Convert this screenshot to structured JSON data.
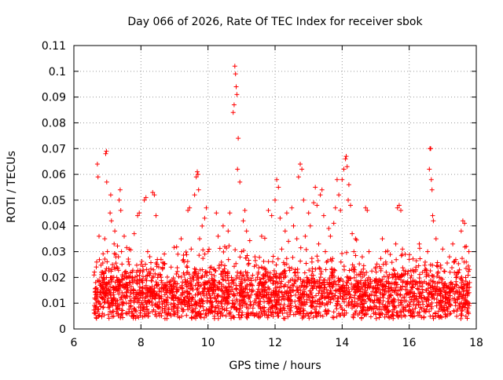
{
  "chart_data": {
    "type": "scatter",
    "title": "Day 066 of 2026, Rate Of TEC Index for receiver sbok",
    "xlabel": "GPS time / hours",
    "ylabel": "ROTI / TECUs",
    "xlim": [
      6,
      18
    ],
    "ylim": [
      0,
      0.11
    ],
    "xticks": [
      6,
      8,
      10,
      12,
      14,
      16,
      18
    ],
    "xtick_labels": [
      "6",
      "8",
      "10",
      "12",
      "14",
      "16",
      "18"
    ],
    "yticks": [
      0,
      0.01,
      0.02,
      0.03,
      0.04,
      0.05,
      0.06,
      0.07,
      0.08,
      0.09,
      0.1,
      0.11
    ],
    "ytick_labels": [
      "0",
      "0.01",
      "0.02",
      "0.03",
      "0.04",
      "0.05",
      "0.06",
      "0.07",
      "0.08",
      "0.09",
      "0.1",
      "0.11"
    ],
    "grid": true,
    "marker": "+",
    "color": "#ff0000",
    "series": [
      {
        "points": [
          [
            6.62,
            0.012
          ],
          [
            6.65,
            0.018
          ],
          [
            6.68,
            0.026
          ],
          [
            6.7,
            0.064
          ],
          [
            6.72,
            0.059
          ],
          [
            6.75,
            0.036
          ],
          [
            6.78,
            0.01
          ],
          [
            6.8,
            0.014
          ],
          [
            6.82,
            0.022
          ],
          [
            6.85,
            0.006
          ],
          [
            6.88,
            0.016
          ],
          [
            6.9,
            0.02
          ],
          [
            6.92,
            0.035
          ],
          [
            6.95,
            0.068
          ],
          [
            6.97,
            0.069
          ],
          [
            6.98,
            0.057
          ],
          [
            7.0,
            0.03
          ],
          [
            7.03,
            0.012
          ],
          [
            7.05,
            0.018
          ],
          [
            7.08,
            0.045
          ],
          [
            7.1,
            0.052
          ],
          [
            7.12,
            0.042
          ],
          [
            7.15,
            0.025
          ],
          [
            7.18,
            0.016
          ],
          [
            7.2,
            0.033
          ],
          [
            7.22,
            0.038
          ],
          [
            7.25,
            0.015
          ],
          [
            7.28,
            0.02
          ],
          [
            7.3,
            0.011
          ],
          [
            7.33,
            0.028
          ],
          [
            7.35,
            0.05
          ],
          [
            7.38,
            0.054
          ],
          [
            7.4,
            0.046
          ],
          [
            7.42,
            0.03
          ],
          [
            7.45,
            0.019
          ],
          [
            7.48,
            0.013
          ],
          [
            7.5,
            0.036
          ],
          [
            7.55,
            0.022
          ],
          [
            7.6,
            0.016
          ],
          [
            7.65,
            0.031
          ],
          [
            7.7,
            0.014
          ],
          [
            7.75,
            0.02
          ],
          [
            7.8,
            0.037
          ],
          [
            7.85,
            0.012
          ],
          [
            7.9,
            0.044
          ],
          [
            7.95,
            0.045
          ],
          [
            8.0,
            0.025
          ],
          [
            8.05,
            0.018
          ],
          [
            8.1,
            0.05
          ],
          [
            8.15,
            0.051
          ],
          [
            8.2,
            0.03
          ],
          [
            8.25,
            0.016
          ],
          [
            8.3,
            0.014
          ],
          [
            8.35,
            0.053
          ],
          [
            8.4,
            0.052
          ],
          [
            8.45,
            0.044
          ],
          [
            8.5,
            0.02
          ],
          [
            8.55,
            0.012
          ],
          [
            8.6,
            0.027
          ],
          [
            8.7,
            0.017
          ],
          [
            8.8,
            0.015
          ],
          [
            8.9,
            0.024
          ],
          [
            9.0,
            0.013
          ],
          [
            9.1,
            0.029
          ],
          [
            9.2,
            0.035
          ],
          [
            9.3,
            0.021
          ],
          [
            9.4,
            0.046
          ],
          [
            9.45,
            0.047
          ],
          [
            9.5,
            0.031
          ],
          [
            9.55,
            0.012
          ],
          [
            9.6,
            0.052
          ],
          [
            9.65,
            0.059
          ],
          [
            9.68,
            0.061
          ],
          [
            9.7,
            0.06
          ],
          [
            9.72,
            0.054
          ],
          [
            9.75,
            0.035
          ],
          [
            9.8,
            0.02
          ],
          [
            9.85,
            0.014
          ],
          [
            9.9,
            0.043
          ],
          [
            9.95,
            0.047
          ],
          [
            10.0,
            0.03
          ],
          [
            10.05,
            0.013
          ],
          [
            10.1,
            0.024
          ],
          [
            10.2,
            0.017
          ],
          [
            10.25,
            0.045
          ],
          [
            10.3,
            0.036
          ],
          [
            10.35,
            0.018
          ],
          [
            10.4,
            0.025
          ],
          [
            10.45,
            0.04
          ],
          [
            10.5,
            0.032
          ],
          [
            10.55,
            0.015
          ],
          [
            10.6,
            0.038
          ],
          [
            10.65,
            0.045
          ],
          [
            10.7,
            0.02
          ],
          [
            10.75,
            0.084
          ],
          [
            10.78,
            0.087
          ],
          [
            10.8,
            0.102
          ],
          [
            10.82,
            0.099
          ],
          [
            10.84,
            0.094
          ],
          [
            10.86,
            0.091
          ],
          [
            10.88,
            0.062
          ],
          [
            10.9,
            0.074
          ],
          [
            10.95,
            0.057
          ],
          [
            11.0,
            0.03
          ],
          [
            11.05,
            0.042
          ],
          [
            11.1,
            0.046
          ],
          [
            11.15,
            0.038
          ],
          [
            11.2,
            0.025
          ],
          [
            11.3,
            0.015
          ],
          [
            11.4,
            0.028
          ],
          [
            11.5,
            0.022
          ],
          [
            11.6,
            0.036
          ],
          [
            11.7,
            0.018
          ],
          [
            11.8,
            0.046
          ],
          [
            11.9,
            0.044
          ],
          [
            12.0,
            0.05
          ],
          [
            12.05,
            0.058
          ],
          [
            12.1,
            0.055
          ],
          [
            12.15,
            0.043
          ],
          [
            12.2,
            0.031
          ],
          [
            12.25,
            0.02
          ],
          [
            12.3,
            0.038
          ],
          [
            12.35,
            0.045
          ],
          [
            12.4,
            0.034
          ],
          [
            12.45,
            0.016
          ],
          [
            12.5,
            0.047
          ],
          [
            12.55,
            0.04
          ],
          [
            12.6,
            0.023
          ],
          [
            12.65,
            0.035
          ],
          [
            12.7,
            0.059
          ],
          [
            12.75,
            0.064
          ],
          [
            12.8,
            0.062
          ],
          [
            12.85,
            0.05
          ],
          [
            12.9,
            0.036
          ],
          [
            12.95,
            0.02
          ],
          [
            13.0,
            0.045
          ],
          [
            13.05,
            0.04
          ],
          [
            13.1,
            0.026
          ],
          [
            13.15,
            0.049
          ],
          [
            13.2,
            0.055
          ],
          [
            13.25,
            0.048
          ],
          [
            13.3,
            0.033
          ],
          [
            13.35,
            0.052
          ],
          [
            13.4,
            0.054
          ],
          [
            13.45,
            0.044
          ],
          [
            13.5,
            0.03
          ],
          [
            13.55,
            0.018
          ],
          [
            13.6,
            0.039
          ],
          [
            13.65,
            0.036
          ],
          [
            13.7,
            0.023
          ],
          [
            13.75,
            0.041
          ],
          [
            13.8,
            0.047
          ],
          [
            13.85,
            0.058
          ],
          [
            13.9,
            0.052
          ],
          [
            13.95,
            0.046
          ],
          [
            14.0,
            0.058
          ],
          [
            14.05,
            0.062
          ],
          [
            14.1,
            0.066
          ],
          [
            14.12,
            0.067
          ],
          [
            14.15,
            0.063
          ],
          [
            14.18,
            0.05
          ],
          [
            14.2,
            0.056
          ],
          [
            14.25,
            0.048
          ],
          [
            14.3,
            0.037
          ],
          [
            14.35,
            0.03
          ],
          [
            14.4,
            0.035
          ],
          [
            14.5,
            0.021
          ],
          [
            14.6,
            0.028
          ],
          [
            14.7,
            0.047
          ],
          [
            14.75,
            0.046
          ],
          [
            14.8,
            0.03
          ],
          [
            14.9,
            0.016
          ],
          [
            15.0,
            0.024
          ],
          [
            15.1,
            0.019
          ],
          [
            15.2,
            0.035
          ],
          [
            15.3,
            0.026
          ],
          [
            15.4,
            0.015
          ],
          [
            15.5,
            0.02
          ],
          [
            15.6,
            0.033
          ],
          [
            15.65,
            0.047
          ],
          [
            15.7,
            0.048
          ],
          [
            15.75,
            0.046
          ],
          [
            15.8,
            0.031
          ],
          [
            15.9,
            0.018
          ],
          [
            16.0,
            0.027
          ],
          [
            16.1,
            0.016
          ],
          [
            16.2,
            0.024
          ],
          [
            16.3,
            0.033
          ],
          [
            16.4,
            0.022
          ],
          [
            16.5,
            0.015
          ],
          [
            16.55,
            0.03
          ],
          [
            16.6,
            0.062
          ],
          [
            16.62,
            0.07
          ],
          [
            16.64,
            0.07
          ],
          [
            16.66,
            0.058
          ],
          [
            16.68,
            0.054
          ],
          [
            16.7,
            0.044
          ],
          [
            16.72,
            0.042
          ],
          [
            16.8,
            0.035
          ],
          [
            16.9,
            0.02
          ],
          [
            17.0,
            0.031
          ],
          [
            17.1,
            0.016
          ],
          [
            17.2,
            0.028
          ],
          [
            17.3,
            0.033
          ],
          [
            17.4,
            0.021
          ],
          [
            17.5,
            0.014
          ],
          [
            17.55,
            0.038
          ],
          [
            17.6,
            0.042
          ],
          [
            17.65,
            0.041
          ],
          [
            17.7,
            0.026
          ],
          [
            17.75,
            0.015
          ],
          [
            17.78,
            0.03
          ],
          [
            17.8,
            0.018
          ]
        ]
      }
    ],
    "dense_band": {
      "x_range": [
        6.6,
        17.8
      ],
      "y_range": [
        0.004,
        0.03
      ],
      "typical": 0.013
    }
  }
}
